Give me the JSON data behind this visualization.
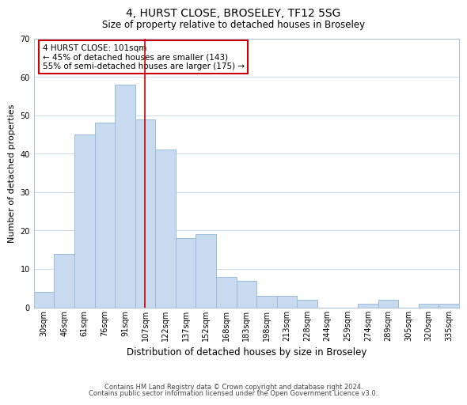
{
  "title": "4, HURST CLOSE, BROSELEY, TF12 5SG",
  "subtitle": "Size of property relative to detached houses in Broseley",
  "xlabel": "Distribution of detached houses by size in Broseley",
  "ylabel": "Number of detached properties",
  "bar_labels": [
    "30sqm",
    "46sqm",
    "61sqm",
    "76sqm",
    "91sqm",
    "107sqm",
    "122sqm",
    "137sqm",
    "152sqm",
    "168sqm",
    "183sqm",
    "198sqm",
    "213sqm",
    "228sqm",
    "244sqm",
    "259sqm",
    "274sqm",
    "289sqm",
    "305sqm",
    "320sqm",
    "335sqm"
  ],
  "bar_values": [
    4,
    14,
    45,
    48,
    58,
    49,
    41,
    18,
    19,
    8,
    7,
    3,
    3,
    2,
    0,
    0,
    1,
    2,
    0,
    1,
    1
  ],
  "bar_color": "#c8daf0",
  "bar_edge_color": "#9bbcd8",
  "vline_index": 5,
  "vline_color": "#cc0000",
  "ylim": [
    0,
    70
  ],
  "yticks": [
    0,
    10,
    20,
    30,
    40,
    50,
    60,
    70
  ],
  "annotation_text": "4 HURST CLOSE: 101sqm\n← 45% of detached houses are smaller (143)\n55% of semi-detached houses are larger (175) →",
  "annotation_box_color": "#ffffff",
  "annotation_box_edge": "#cc0000",
  "footer1": "Contains HM Land Registry data © Crown copyright and database right 2024.",
  "footer2": "Contains public sector information licensed under the Open Government Licence v3.0.",
  "background_color": "#ffffff",
  "grid_color": "#d0dde8",
  "title_fontsize": 10,
  "subtitle_fontsize": 8.5,
  "ylabel_fontsize": 8,
  "xlabel_fontsize": 8.5,
  "tick_fontsize": 7,
  "ann_fontsize": 7.5,
  "footer_fontsize": 6
}
